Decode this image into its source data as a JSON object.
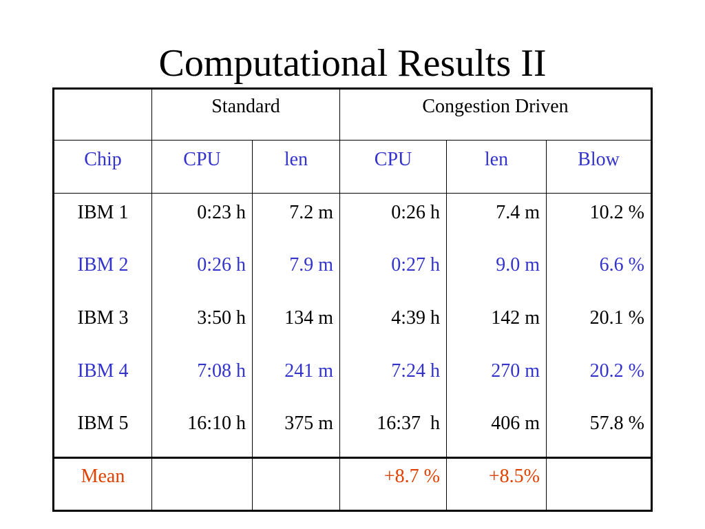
{
  "title": "Computational Results II",
  "colors": {
    "label": "#3333cc",
    "highlight_row": "#3333cc",
    "mean": "#e04000",
    "text": "#000000"
  },
  "table": {
    "group_headers": [
      "Standard",
      "Congestion Driven"
    ],
    "columns": [
      "Chip",
      "CPU",
      "len",
      "CPU",
      "len",
      "Blow"
    ],
    "rows": [
      {
        "chip": "IBM 1",
        "std_cpu": "0:23 h",
        "std_len": "7.2 m",
        "cd_cpu": "0:26 h",
        "cd_len": "7.4 m",
        "blow": "10.2 %"
      },
      {
        "chip": "IBM 2",
        "std_cpu": "0:26 h",
        "std_len": "7.9 m",
        "cd_cpu": "0:27 h",
        "cd_len": "9.0 m",
        "blow": "6.6 %"
      },
      {
        "chip": "IBM 3",
        "std_cpu": "3:50 h",
        "std_len": "134 m",
        "cd_cpu": "4:39 h",
        "cd_len": "142 m",
        "blow": "20.1 %"
      },
      {
        "chip": "IBM 4",
        "std_cpu": "7:08 h",
        "std_len": "241 m",
        "cd_cpu": "7:24 h",
        "cd_len": "270 m",
        "blow": "20.2 %"
      },
      {
        "chip": "IBM 5",
        "std_cpu": "16:10 h",
        "std_len": "375 m",
        "cd_cpu": "16:37  h",
        "cd_len": "406 m",
        "blow": "57.8 %"
      }
    ],
    "mean": {
      "label": "Mean",
      "std_cpu": "",
      "std_len": "",
      "cd_cpu": "+8.7 %",
      "cd_len": "+8.5%",
      "blow": ""
    }
  }
}
